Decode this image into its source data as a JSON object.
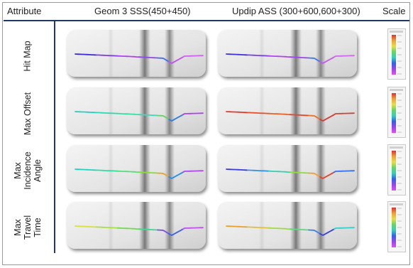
{
  "header": {
    "attribute": "Attribute",
    "col1": "Geom 3 SSS(450+450)",
    "col2": "Updip ASS (300+600,600+300)",
    "scale": "Scale"
  },
  "rows": [
    {
      "label": "Hit Map"
    },
    {
      "label": "Max Offset"
    },
    {
      "label": "Max Incidence Angle"
    },
    {
      "label": "Max Travel Time"
    }
  ],
  "colors": {
    "rule": "#1f3864",
    "panel": "#e9e9e9"
  }
}
